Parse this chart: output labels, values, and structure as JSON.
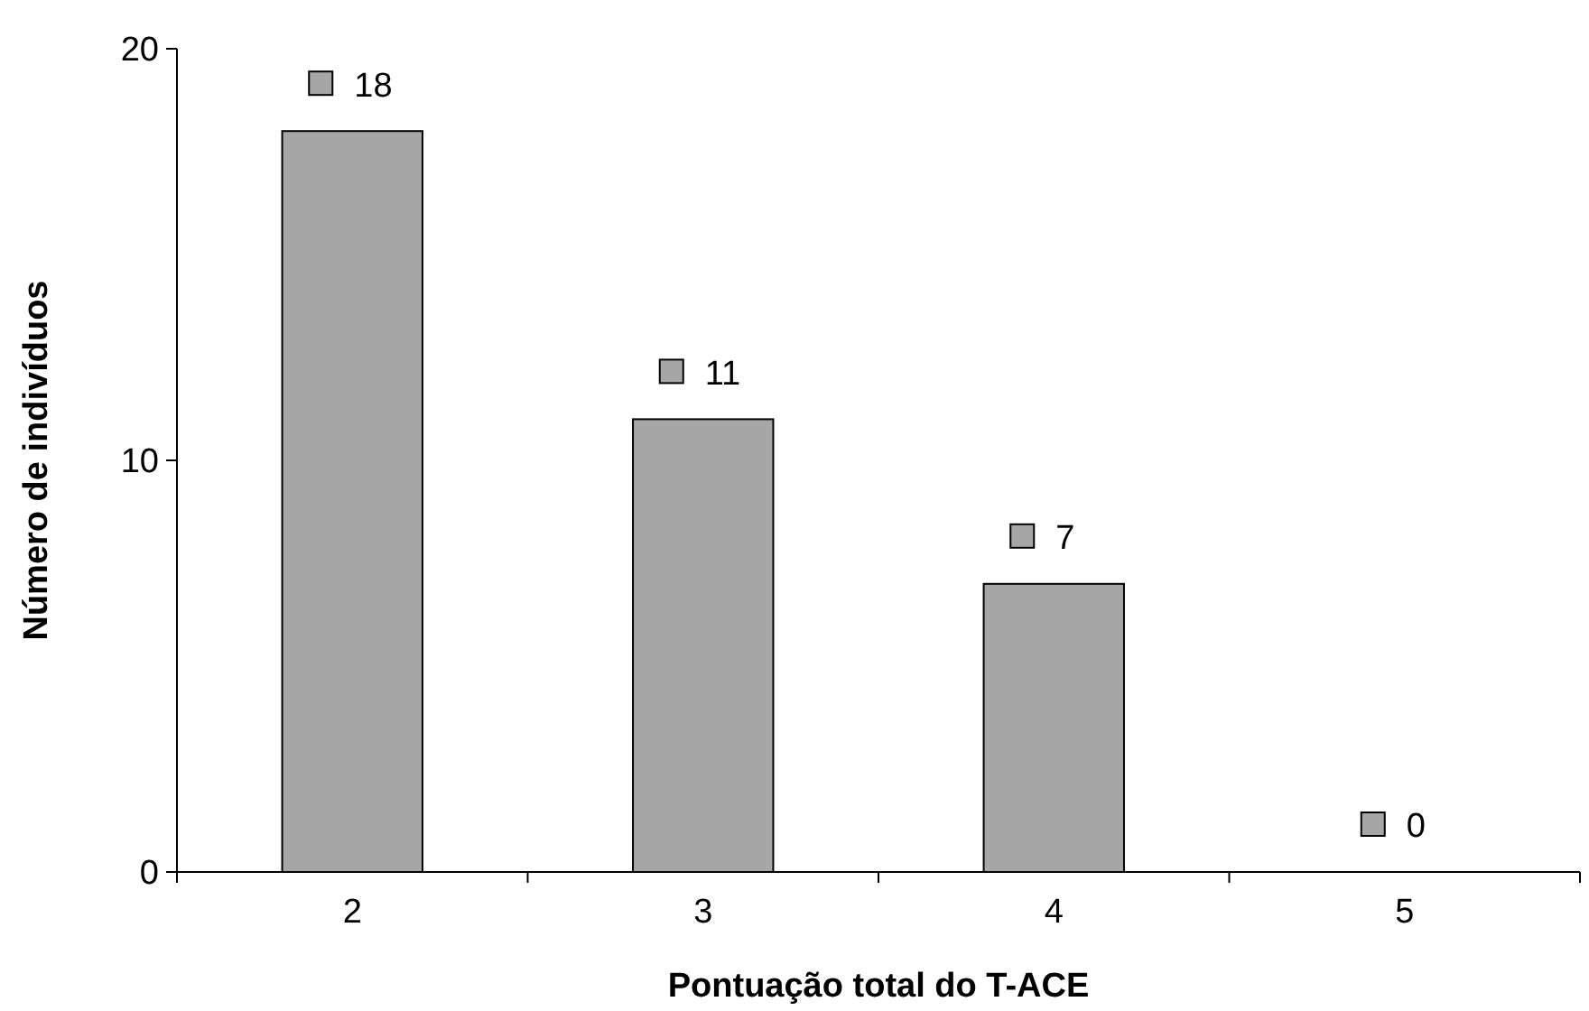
{
  "chart_data": {
    "type": "bar",
    "xlabel": "Pontuação total do T-ACE",
    "ylabel": "Número de indivíduos",
    "categories": [
      "2",
      "3",
      "4",
      "5"
    ],
    "values": [
      18,
      11,
      7,
      0
    ],
    "color": "#a6a6a6",
    "ylim": [
      0,
      20
    ],
    "yticks": [
      0,
      10,
      20
    ],
    "grid": false,
    "data_labels": true
  }
}
